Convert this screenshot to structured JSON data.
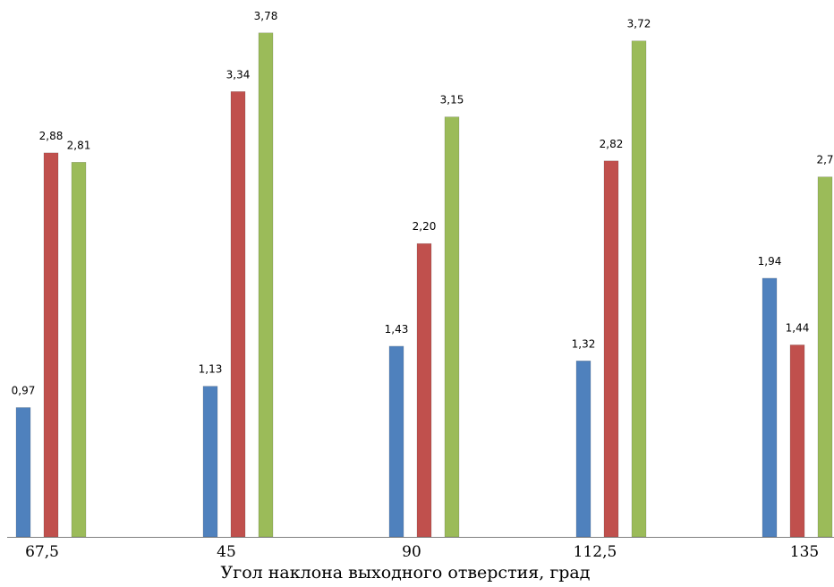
{
  "chart_data": {
    "type": "bar",
    "xlabel": "Угол наклона выходного отверстия, град",
    "categories": [
      "67,5",
      "45",
      "90",
      "112,5",
      "135"
    ],
    "series": [
      {
        "color": "#4F81BD",
        "values": [
          0.97,
          1.13,
          1.43,
          1.32,
          1.94
        ],
        "labels": [
          "0,97",
          "1,13",
          "1,43",
          "1,32",
          "1,94"
        ]
      },
      {
        "color": "#C0504D",
        "values": [
          2.88,
          3.34,
          2.2,
          2.82,
          1.44
        ],
        "labels": [
          "2,88",
          "3,34",
          "2,20",
          "2,82",
          "1,44"
        ]
      },
      {
        "color": "#9BBB59",
        "values": [
          2.81,
          3.78,
          3.15,
          3.72,
          2.7
        ],
        "labels": [
          "2,81",
          "3,78",
          "3,15",
          "3,72",
          "2,7"
        ]
      }
    ],
    "ylim": [
      0,
      4
    ],
    "grid": false,
    "legend": "none"
  }
}
